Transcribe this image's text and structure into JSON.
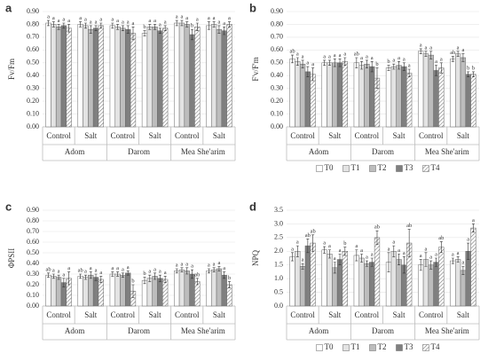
{
  "chart_data": [
    {
      "type": "bar",
      "panel": "a",
      "ylabel": "Fv/Fm",
      "categories": [
        "Control",
        "Salt",
        "Control",
        "Salt",
        "Control",
        "Salt"
      ],
      "groups": [
        "Adom",
        "Darom",
        "Mea She'arim"
      ],
      "ylim": [
        0,
        0.9
      ],
      "yticks": [
        {
          "value": 0,
          "label": "0.00"
        },
        {
          "value": 0.1,
          "label": "0.10"
        },
        {
          "value": 0.2,
          "label": "0.20"
        },
        {
          "value": 0.3,
          "label": "0.30"
        },
        {
          "value": 0.4,
          "label": "0.40"
        },
        {
          "value": 0.5,
          "label": "0.50"
        },
        {
          "value": 0.6,
          "label": "0.60"
        },
        {
          "value": 0.7,
          "label": "0.70"
        },
        {
          "value": 0.8,
          "label": "0.80"
        },
        {
          "value": 0.9,
          "label": "0.90"
        }
      ],
      "grid": true,
      "legend": false,
      "series": [
        {
          "name": "T0",
          "color": "#ffffff",
          "values": [
            0.81,
            0.8,
            0.79,
            0.73,
            0.81,
            0.79
          ],
          "errors": [
            0.02,
            0.02,
            0.02,
            0.02,
            0.02,
            0.03
          ],
          "letters": [
            "a",
            "a",
            "a",
            "b",
            "a",
            "a"
          ]
        },
        {
          "name": "T1",
          "color": "#e3e3e3",
          "values": [
            0.8,
            0.79,
            0.78,
            0.78,
            0.81,
            0.8
          ],
          "errors": [
            0.02,
            0.02,
            0.02,
            0.02,
            0.02,
            0.02
          ],
          "letters": [
            "a",
            "a",
            "a",
            "a",
            "a",
            "a"
          ]
        },
        {
          "name": "T2",
          "color": "#bdbdbd",
          "values": [
            0.78,
            0.76,
            0.77,
            0.78,
            0.8,
            0.76
          ],
          "errors": [
            0.02,
            0.03,
            0.02,
            0.02,
            0.02,
            0.03
          ],
          "letters": [
            "a",
            "a",
            "a",
            "a",
            "a",
            "a"
          ]
        },
        {
          "name": "T3",
          "color": "#7f7f7f",
          "values": [
            0.79,
            0.77,
            0.76,
            0.75,
            0.72,
            0.75
          ],
          "errors": [
            0.02,
            0.02,
            0.03,
            0.02,
            0.04,
            0.03
          ],
          "letters": [
            "a",
            "a",
            "a",
            "a",
            "b",
            "a"
          ]
        },
        {
          "name": "T4",
          "color": "#ffffff",
          "hatch": true,
          "values": [
            0.77,
            0.79,
            0.73,
            0.77,
            0.78,
            0.8
          ],
          "errors": [
            0.03,
            0.02,
            0.05,
            0.02,
            0.03,
            0.02
          ],
          "letters": [
            "a",
            "a",
            "a",
            "a",
            "a",
            "a"
          ]
        }
      ]
    },
    {
      "type": "bar",
      "panel": "b",
      "ylabel": "F'v/F'm",
      "categories": [
        "Control",
        "Salt",
        "Control",
        "Salt",
        "Control",
        "Salt"
      ],
      "groups": [
        "Adom",
        "Darom",
        "Mea She'arim"
      ],
      "ylim": [
        0,
        0.9
      ],
      "yticks": [
        {
          "value": 0,
          "label": "0.00"
        },
        {
          "value": 0.1,
          "label": "0.10"
        },
        {
          "value": 0.2,
          "label": "0.20"
        },
        {
          "value": 0.3,
          "label": "0.30"
        },
        {
          "value": 0.4,
          "label": "0.40"
        },
        {
          "value": 0.5,
          "label": "0.50"
        },
        {
          "value": 0.6,
          "label": "0.60"
        },
        {
          "value": 0.7,
          "label": "0.70"
        },
        {
          "value": 0.8,
          "label": "0.80"
        },
        {
          "value": 0.9,
          "label": "0.90"
        }
      ],
      "grid": true,
      "legend": true,
      "series": [
        {
          "name": "T0",
          "color": "#ffffff",
          "values": [
            0.53,
            0.5,
            0.5,
            0.46,
            0.59,
            0.53
          ],
          "errors": [
            0.03,
            0.02,
            0.04,
            0.02,
            0.02,
            0.02
          ],
          "letters": [
            "ab",
            "a",
            "ab",
            "b",
            "a",
            "ab"
          ]
        },
        {
          "name": "T1",
          "color": "#e3e3e3",
          "values": [
            0.51,
            0.5,
            0.48,
            0.47,
            0.57,
            0.57
          ],
          "errors": [
            0.03,
            0.02,
            0.03,
            0.02,
            0.02,
            0.02
          ],
          "letters": [
            "a",
            "a",
            "a",
            "a",
            "a",
            "a"
          ]
        },
        {
          "name": "T2",
          "color": "#bdbdbd",
          "values": [
            0.49,
            0.5,
            0.49,
            0.48,
            0.56,
            0.54
          ],
          "errors": [
            0.03,
            0.03,
            0.03,
            0.03,
            0.03,
            0.03
          ],
          "letters": [
            "a",
            "a",
            "a",
            "a",
            "a",
            "a"
          ]
        },
        {
          "name": "T3",
          "color": "#7f7f7f",
          "values": [
            0.43,
            0.5,
            0.47,
            0.47,
            0.44,
            0.41
          ],
          "errors": [
            0.04,
            0.03,
            0.04,
            0.03,
            0.04,
            0.02
          ],
          "letters": [
            "a",
            "a",
            "a",
            "a",
            "a",
            "b"
          ]
        },
        {
          "name": "T4",
          "color": "#ffffff",
          "hatch": true,
          "values": [
            0.41,
            0.51,
            0.38,
            0.42,
            0.46,
            0.41
          ],
          "errors": [
            0.05,
            0.03,
            0.08,
            0.03,
            0.04,
            0.02
          ],
          "letters": [
            "a",
            "a",
            "b",
            "a",
            "a",
            "b"
          ]
        }
      ]
    },
    {
      "type": "bar",
      "panel": "c",
      "ylabel": "ΦPSII",
      "categories": [
        "Control",
        "Salt",
        "Control",
        "Salt",
        "Control",
        "Salt"
      ],
      "groups": [
        "Adom",
        "Darom",
        "Mea She'arim"
      ],
      "ylim": [
        0,
        0.9
      ],
      "yticks": [
        {
          "value": 0,
          "label": "0.00"
        },
        {
          "value": 0.1,
          "label": "0.10"
        },
        {
          "value": 0.2,
          "label": "0.20"
        },
        {
          "value": 0.3,
          "label": "0.30"
        },
        {
          "value": 0.4,
          "label": "0.40"
        },
        {
          "value": 0.5,
          "label": "0.50"
        },
        {
          "value": 0.6,
          "label": "0.60"
        },
        {
          "value": 0.7,
          "label": "0.70"
        },
        {
          "value": 0.8,
          "label": "0.80"
        },
        {
          "value": 0.9,
          "label": "0.90"
        }
      ],
      "grid": true,
      "legend": false,
      "series": [
        {
          "name": "T0",
          "color": "#ffffff",
          "values": [
            0.29,
            0.28,
            0.3,
            0.24,
            0.33,
            0.33
          ],
          "errors": [
            0.02,
            0.02,
            0.02,
            0.03,
            0.02,
            0.02
          ],
          "letters": [
            "ab",
            "ab",
            "a",
            "b",
            "a",
            "a"
          ]
        },
        {
          "name": "T1",
          "color": "#e3e3e3",
          "values": [
            0.28,
            0.27,
            0.3,
            0.26,
            0.34,
            0.34
          ],
          "errors": [
            0.02,
            0.02,
            0.02,
            0.03,
            0.02,
            0.02
          ],
          "letters": [
            "a",
            "a",
            "a",
            "a",
            "a",
            "a"
          ]
        },
        {
          "name": "T2",
          "color": "#bdbdbd",
          "values": [
            0.27,
            0.29,
            0.29,
            0.28,
            0.33,
            0.35
          ],
          "errors": [
            0.02,
            0.03,
            0.02,
            0.03,
            0.03,
            0.02
          ],
          "letters": [
            "a",
            "a",
            "a",
            "a",
            "a",
            "a"
          ]
        },
        {
          "name": "T3",
          "color": "#7f7f7f",
          "values": [
            0.22,
            0.27,
            0.31,
            0.26,
            0.3,
            0.29
          ],
          "errors": [
            0.04,
            0.03,
            0.02,
            0.03,
            0.04,
            0.03
          ],
          "letters": [
            "a",
            "a",
            "a",
            "a",
            "a",
            "a"
          ]
        },
        {
          "name": "T4",
          "color": "#ffffff",
          "hatch": true,
          "values": [
            0.26,
            0.25,
            0.14,
            0.25,
            0.23,
            0.2
          ],
          "errors": [
            0.06,
            0.03,
            0.06,
            0.03,
            0.03,
            0.03
          ],
          "letters": [
            "a",
            "a",
            "b",
            "a",
            "ab",
            "b"
          ]
        }
      ]
    },
    {
      "type": "bar",
      "panel": "d",
      "ylabel": "NPQ",
      "categories": [
        "Control",
        "Salt",
        "Control",
        "Salt",
        "Control",
        "Salt"
      ],
      "groups": [
        "Adom",
        "Darom",
        "Mea She'arim"
      ],
      "ylim": [
        0,
        3.5
      ],
      "yticks": [
        {
          "value": 0,
          "label": "0.0"
        },
        {
          "value": 0.5,
          "label": "0.5"
        },
        {
          "value": 1,
          "label": "1.0"
        },
        {
          "value": 1.5,
          "label": "1.5"
        },
        {
          "value": 2,
          "label": "2.0"
        },
        {
          "value": 2.5,
          "label": "2.5"
        },
        {
          "value": 3,
          "label": "3.0"
        },
        {
          "value": 3.5,
          "label": "3.5"
        }
      ],
      "grid": true,
      "legend": true,
      "series": [
        {
          "name": "T0",
          "color": "#ffffff",
          "values": [
            1.8,
            2.05,
            1.85,
            1.6,
            1.5,
            1.65
          ],
          "errors": [
            0.15,
            0.12,
            0.2,
            0.35,
            0.2,
            0.1
          ],
          "letters": [
            "a",
            "a",
            "a",
            "a",
            "a",
            "a"
          ]
        },
        {
          "name": "T1",
          "color": "#e3e3e3",
          "values": [
            2.0,
            1.9,
            1.75,
            2.0,
            1.7,
            1.7
          ],
          "errors": [
            0.2,
            0.15,
            0.15,
            0.2,
            0.25,
            0.1
          ],
          "letters": [
            "a",
            "a",
            "a",
            "a",
            "a",
            "a"
          ]
        },
        {
          "name": "T2",
          "color": "#bdbdbd",
          "values": [
            1.45,
            1.4,
            1.55,
            1.7,
            1.5,
            1.3
          ],
          "errors": [
            0.1,
            0.2,
            0.1,
            0.2,
            0.15,
            0.15
          ],
          "letters": [
            "a",
            "a",
            "a",
            "a",
            "a",
            "a"
          ]
        },
        {
          "name": "T3",
          "color": "#7f7f7f",
          "values": [
            2.2,
            1.7,
            1.6,
            1.5,
            1.6,
            2.0
          ],
          "errors": [
            0.25,
            0.2,
            0.15,
            0.3,
            0.15,
            0.3
          ],
          "letters": [
            "ab",
            "a",
            "a",
            "a",
            "a",
            "a"
          ]
        },
        {
          "name": "T4",
          "color": "#ffffff",
          "hatch": true,
          "values": [
            2.3,
            2.0,
            2.5,
            2.3,
            2.15,
            2.85
          ],
          "errors": [
            0.3,
            0.15,
            0.25,
            0.5,
            0.2,
            0.15
          ],
          "letters": [
            "ab",
            "b",
            "ab",
            "ab",
            "ab",
            "a"
          ]
        }
      ]
    }
  ]
}
